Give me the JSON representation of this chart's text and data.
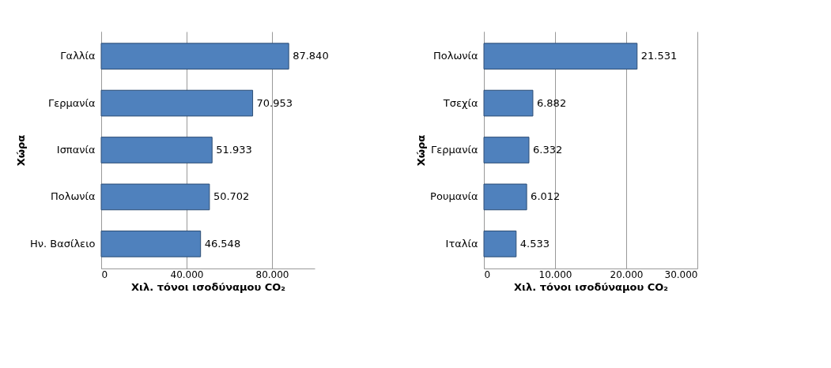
{
  "chart_data": [
    {
      "type": "bar",
      "orientation": "horizontal",
      "categories": [
        "Γαλλία",
        "Γερμανία",
        "Ισπανία",
        "Πολωνία",
        "Ην. Βασίλειο"
      ],
      "series": [
        {
          "color": "#4f81bd",
          "values": [
            87840,
            70953,
            51933,
            50702,
            46548
          ],
          "value_labels": [
            "87.840",
            "70.953",
            "51.933",
            "50.702",
            "46.548"
          ]
        }
      ],
      "xlim": [
        0,
        100000
      ],
      "xticks": [
        0,
        {
          "value": 40000,
          "label": "40.000"
        },
        {
          "value": 80000,
          "label": "80.000"
        }
      ],
      "xlabel": "Χιλ. τόνοι ισοδύναμου CO₂",
      "ylabel": "Χώρα",
      "grid": "x"
    },
    {
      "type": "bar",
      "orientation": "horizontal",
      "categories": [
        "Πολωνία",
        "Τσεχία",
        "Γερμανία",
        "Ρουμανία",
        "Ιταλία"
      ],
      "series": [
        {
          "color": "#4f81bd",
          "values": [
            21531,
            6882,
            6332,
            6012,
            4533
          ],
          "value_labels": [
            "21.531",
            "6.882",
            "6.332",
            "6.012",
            "4.533"
          ]
        }
      ],
      "xlim": [
        0,
        30000
      ],
      "xticks": [
        0,
        {
          "value": 10000,
          "label": "10.000"
        },
        {
          "value": 20000,
          "label": "20.000"
        },
        {
          "value": 30000,
          "label": "30.000"
        }
      ],
      "xlabel": "Χιλ. τόνοι ισοδύναμου CO₂",
      "ylabel": "Χώρα",
      "grid": "x"
    }
  ]
}
